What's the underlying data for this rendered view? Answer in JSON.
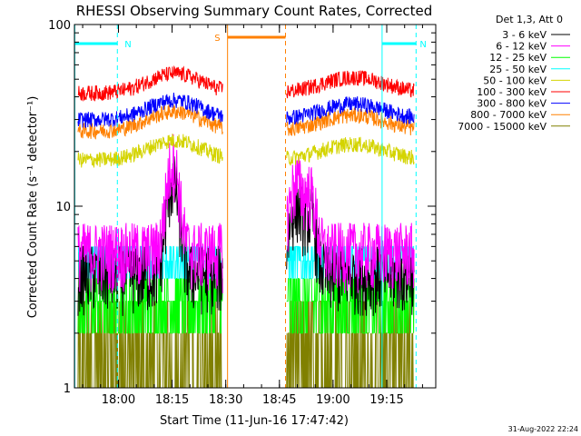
{
  "chart_data": {
    "type": "line",
    "title": "RHESSI Observing Summary Count Rates, Corrected",
    "xlabel": "Start Time (11-Jun-16 17:47:42)",
    "ylabel": "Corrected Count Rate (s⁻¹ detector⁻¹)",
    "yscale": "log",
    "ylim": [
      1,
      100
    ],
    "xlim_minutes_after_17_47_42": [
      0,
      101
    ],
    "y_ticks": [
      "1",
      "10",
      "100"
    ],
    "x_ticks": [
      {
        "label": "18:00",
        "minute": 12.3
      },
      {
        "label": "18:15",
        "minute": 27.3
      },
      {
        "label": "18:30",
        "minute": 42.3
      },
      {
        "label": "18:45",
        "minute": 57.3
      },
      {
        "label": "19:00",
        "minute": 72.3
      },
      {
        "label": "19:15",
        "minute": 87.3
      }
    ],
    "legend_header": "Det 1,3, Att 0",
    "legend_position": "outside-right",
    "data_gap_minutes": [
      42.3,
      58.7
    ],
    "series": [
      {
        "name": "3 - 6 keV",
        "color": "#000000",
        "approx_level": 4.5
      },
      {
        "name": "6 - 12 keV",
        "color": "#ff00ff",
        "approx_level": 6.0
      },
      {
        "name": "12 - 25 keV",
        "color": "#00ff00",
        "approx_level": 3.2
      },
      {
        "name": "25 - 50 keV",
        "color": "#00ffff",
        "approx_level": 5.0
      },
      {
        "name": "50 - 100 keV",
        "color": "#d4d400",
        "approx_level": 18
      },
      {
        "name": "100 - 300 keV",
        "color": "#ff0000",
        "approx_level": 42
      },
      {
        "name": "300 - 800 keV",
        "color": "#0000ff",
        "approx_level": 30
      },
      {
        "name": "800 - 7000 keV",
        "color": "#ff8000",
        "approx_level": 26
      },
      {
        "name": "7000 - 15000 keV",
        "color": "#808000",
        "approx_level": 2.2
      }
    ],
    "annotations": [
      {
        "label": "N",
        "color": "#00ffff",
        "type": "night"
      },
      {
        "label": "N",
        "color": "#00ffff",
        "type": "night"
      },
      {
        "label": "S",
        "color": "#ff8000",
        "type": "saa"
      }
    ],
    "timestamp": "31-Aug-2022 22:24"
  }
}
